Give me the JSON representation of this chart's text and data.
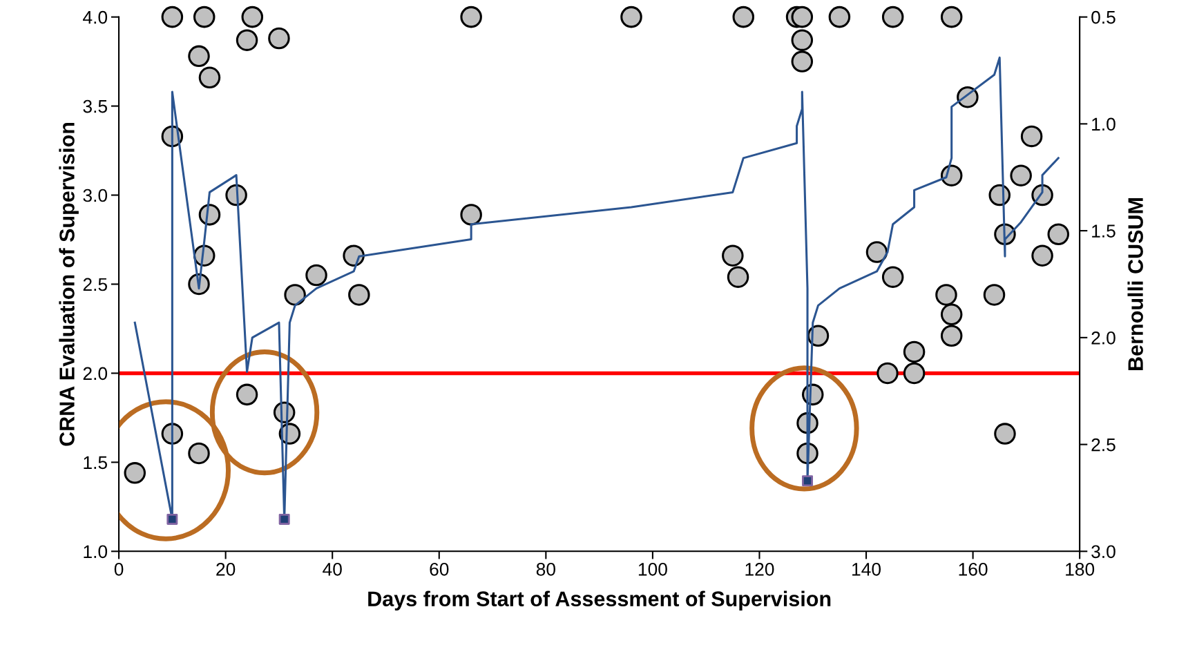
{
  "chart_data": {
    "type": "scatter",
    "xlabel": "Days from Start of Assessment of Supervision",
    "ylabel": "CRNA Evaluation of Supervision",
    "y2label": "Bernoulli CUSUM",
    "xlim": [
      0,
      180
    ],
    "xticks": [
      0,
      20,
      40,
      60,
      80,
      100,
      120,
      140,
      160,
      180
    ],
    "ylim": [
      1,
      4
    ],
    "yticks": [
      {
        "value": 1,
        "label": "1.0"
      },
      {
        "value": 1.5,
        "label": "1.5"
      },
      {
        "value": 2,
        "label": "2.0"
      },
      {
        "value": 2.5,
        "label": "2.5"
      },
      {
        "value": 3,
        "label": "3.0"
      },
      {
        "value": 3.5,
        "label": "3.5"
      },
      {
        "value": 4,
        "label": "4.0"
      }
    ],
    "y2lim": [
      3,
      0.5
    ],
    "y2ticks": [
      {
        "value": 0.5,
        "label": "0.5"
      },
      {
        "value": 1,
        "label": "1.0"
      },
      {
        "value": 1.5,
        "label": "1.5"
      },
      {
        "value": 2,
        "label": "2.0"
      },
      {
        "value": 2.5,
        "label": "2.5"
      },
      {
        "value": 3,
        "label": "3.0"
      }
    ],
    "grid": false,
    "legend": false,
    "series": [
      {
        "type": "scatter",
        "marker": "circle",
        "color": "#c0c0c0",
        "x": [
          3,
          10,
          10,
          10,
          15,
          16,
          15,
          15,
          16,
          17,
          17,
          22,
          24,
          25,
          24,
          30,
          31,
          32,
          33,
          37,
          44,
          45,
          66,
          66,
          96,
          117,
          127,
          128,
          128,
          128,
          115,
          116,
          131,
          130,
          129,
          129,
          135,
          145,
          156,
          142,
          145,
          156,
          159,
          155,
          156,
          156,
          144,
          149,
          149,
          164,
          165,
          166,
          166,
          169,
          171,
          173,
          173,
          176
        ],
        "values": [
          1.44,
          4.0,
          3.33,
          1.66,
          3.78,
          4.0,
          2.5,
          1.55,
          2.66,
          3.66,
          2.89,
          3.0,
          3.87,
          4.0,
          1.88,
          3.88,
          1.78,
          1.66,
          2.44,
          2.55,
          2.66,
          2.44,
          4.0,
          2.89,
          4.0,
          4.0,
          4.0,
          4.0,
          3.87,
          3.75,
          2.66,
          2.54,
          2.21,
          1.88,
          1.72,
          1.55,
          4.0,
          4.0,
          4.0,
          2.68,
          2.54,
          3.11,
          3.55,
          2.44,
          2.33,
          2.21,
          2.0,
          2.0,
          2.12,
          2.44,
          3.0,
          2.78,
          1.66,
          3.11,
          3.33,
          3.0,
          2.66,
          2.78
        ]
      },
      {
        "type": "line",
        "axis": "y2",
        "marker": "none",
        "color": "#2b5591",
        "x": [
          3,
          10,
          10,
          15,
          16,
          17,
          22,
          24,
          25,
          30,
          31,
          32,
          33,
          37,
          44,
          45,
          66,
          66,
          96,
          115,
          117,
          127,
          127,
          128,
          128,
          129,
          129,
          130,
          131,
          135,
          142,
          144,
          145,
          149,
          149,
          155,
          156,
          156,
          164,
          165,
          166,
          166,
          169,
          173,
          173,
          176
        ],
        "values": [
          1.93,
          2.85,
          0.85,
          1.77,
          1.55,
          1.32,
          1.24,
          2.16,
          2.0,
          1.93,
          2.85,
          1.93,
          1.85,
          1.77,
          1.69,
          1.62,
          1.54,
          1.47,
          1.39,
          1.32,
          1.16,
          1.09,
          1.01,
          0.93,
          0.85,
          1.77,
          2.67,
          1.93,
          1.85,
          1.77,
          1.69,
          1.6,
          1.47,
          1.39,
          1.31,
          1.25,
          1.16,
          0.92,
          0.77,
          0.69,
          1.62,
          1.54,
          1.46,
          1.32,
          1.24,
          1.16
        ]
      },
      {
        "type": "scatter",
        "axis": "y2",
        "marker": "square",
        "color": "#1f3f75",
        "x": [
          10,
          31,
          129
        ],
        "values": [
          2.85,
          2.85,
          2.67
        ]
      }
    ],
    "ref_lines": [
      {
        "axis": "y",
        "value": 2,
        "color": "#ff0000"
      }
    ]
  }
}
